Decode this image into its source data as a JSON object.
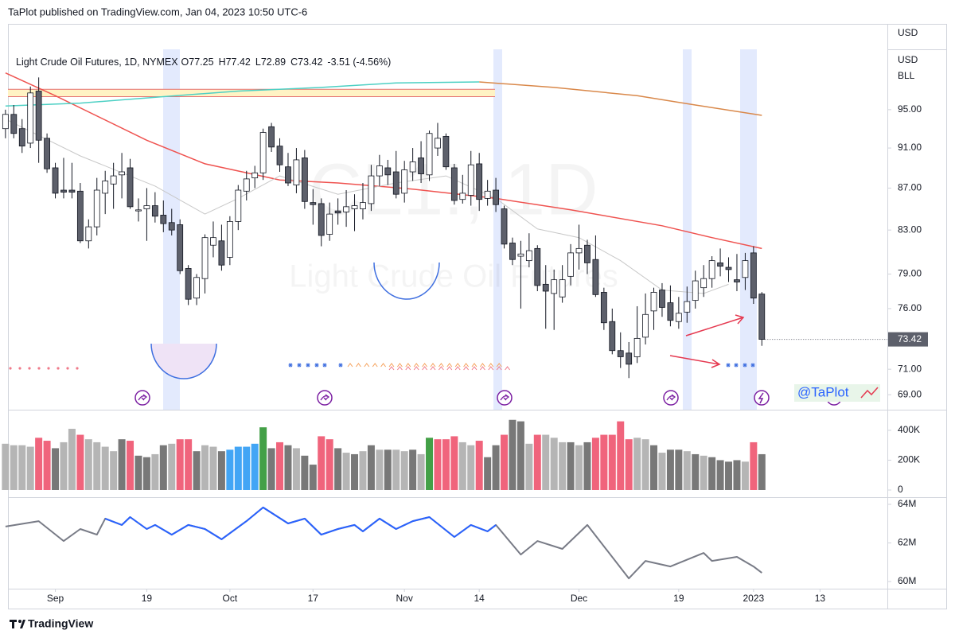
{
  "header": {
    "text": "TaPlot published on TradingView.com, Jan 04, 2023 10:50 UTC-6"
  },
  "footer": {
    "logo": "TradingView"
  },
  "chart_data": {
    "type": "candlestick",
    "legend": {
      "title": "Light Crude Oil Futures, 1D, NYMEX",
      "ohlc": [
        "O77.25",
        "H77.42",
        "L72.89",
        "C73.42"
      ],
      "change": "-3.51 (-4.56%)"
    },
    "watermark": {
      "symbol": "CL1!, 1D",
      "name": "Light Crude Oil Futures"
    },
    "axis_labels": [
      "USD",
      "USD",
      "BLL"
    ],
    "annotation": "@TaPlot",
    "log": true,
    "xlim": [
      0.3,
      106.1
    ],
    "xticks": [
      {
        "value": 6,
        "label": "Sep"
      },
      {
        "value": 17,
        "label": "19"
      },
      {
        "value": 27,
        "label": "Oct"
      },
      {
        "value": 37,
        "label": "17"
      },
      {
        "value": 48,
        "label": "Nov"
      },
      {
        "value": 57,
        "label": "14"
      },
      {
        "value": 69,
        "label": "Dec"
      },
      {
        "value": 81,
        "label": "19"
      },
      {
        "value": 90,
        "label": "2023"
      },
      {
        "value": 98,
        "label": "13"
      }
    ],
    "ylim": [
      67.85,
      104.6
    ],
    "yticks": [
      {
        "value": 69,
        "label": "69.00"
      },
      {
        "value": 71,
        "label": "71.00"
      },
      {
        "value": 76,
        "label": "76.00"
      },
      {
        "value": 79,
        "label": "79.00"
      },
      {
        "value": 83,
        "label": "83.00"
      },
      {
        "value": 87,
        "label": "87.00"
      },
      {
        "value": 91,
        "label": "91.00"
      },
      {
        "value": 95,
        "label": "95.00"
      }
    ],
    "up_color": "#ffffff",
    "down_color": "#5d606b",
    "wick_color": "#131722",
    "open": [
      93.0,
      94.5,
      93.0,
      91.5,
      97.0,
      92.0,
      89.0,
      86.8,
      86.8,
      86.7,
      82.0,
      83.3,
      86.5,
      87.4,
      88.3,
      89.0,
      84.8,
      85.0,
      85.3,
      84.4,
      83.7,
      83.5,
      79.5,
      76.9,
      78.6,
      81.6,
      82.0,
      80.5,
      83.8,
      86.7,
      88.0,
      88.5,
      93.2,
      91.2,
      89.1,
      87.3,
      90.0,
      85.6,
      85.5,
      82.6,
      84.8,
      84.7,
      85.0,
      85.0,
      85.5,
      88.2,
      89.0,
      88.6,
      86.5,
      88.6,
      90.0,
      88.3,
      91.0,
      92.2,
      89.0,
      85.9,
      86.3,
      89.4,
      86.0,
      86.8,
      85.0,
      81.8,
      80.6,
      80.2,
      81.3,
      78.1,
      77.3,
      77.0,
      78.8,
      80.9,
      81.6,
      80.3,
      77.4,
      74.9,
      72.5,
      72.3,
      72.0,
      73.6,
      75.8,
      77.6,
      76.5,
      74.9,
      75.7,
      76.7,
      77.8,
      78.6,
      80.0,
      79.6,
      78.5,
      78.7,
      80.9,
      77.25
    ],
    "high": [
      95.0,
      95.5,
      94.0,
      97.5,
      98.5,
      92.5,
      89.5,
      90.0,
      89.5,
      87.5,
      84.0,
      88.0,
      88.7,
      89.5,
      90.5,
      89.9,
      86.0,
      87.0,
      86.6,
      85.8,
      85.0,
      84.0,
      79.8,
      79.0,
      82.6,
      83.8,
      83.5,
      84.3,
      87.3,
      88.7,
      89.2,
      93.0,
      93.6,
      92.0,
      90.5,
      91.0,
      90.8,
      86.9,
      86.0,
      85.6,
      86.0,
      86.8,
      86.4,
      87.5,
      89.3,
      90.3,
      89.8,
      90.7,
      89.7,
      91.0,
      91.7,
      92.8,
      93.6,
      92.5,
      89.4,
      88.3,
      90.7,
      90.5,
      87.8,
      88.0,
      85.3,
      82.3,
      82.0,
      82.7,
      81.6,
      79.8,
      79.4,
      79.8,
      81.7,
      83.5,
      82.1,
      82.5,
      77.8,
      76.0,
      74.0,
      73.2,
      76.2,
      77.3,
      77.8,
      78.2,
      78.0,
      77.0,
      77.9,
      79.3,
      79.8,
      80.6,
      81.3,
      80.5,
      80.8,
      80.9,
      81.5,
      77.42
    ],
    "low": [
      92.0,
      92.0,
      90.5,
      91.0,
      89.5,
      88.5,
      86.0,
      86.0,
      86.0,
      81.8,
      81.3,
      82.5,
      84.5,
      85.0,
      86.0,
      85.0,
      83.8,
      82.0,
      83.7,
      82.8,
      82.5,
      79.0,
      76.3,
      76.3,
      77.3,
      80.5,
      79.3,
      79.8,
      83.0,
      85.8,
      87.0,
      87.8,
      90.6,
      88.6,
      87.2,
      86.5,
      85.0,
      83.5,
      81.5,
      82.0,
      83.5,
      83.3,
      82.9,
      84.0,
      84.8,
      87.2,
      87.3,
      86.0,
      85.6,
      87.7,
      87.5,
      87.7,
      90.2,
      88.8,
      85.4,
      85.5,
      85.3,
      84.8,
      85.3,
      84.7,
      81.3,
      79.8,
      76.0,
      79.6,
      77.5,
      74.3,
      74.2,
      76.5,
      78.0,
      79.4,
      79.0,
      77.0,
      74.2,
      72.2,
      71.1,
      70.3,
      71.5,
      73.0,
      74.2,
      75.3,
      74.5,
      74.3,
      74.8,
      76.0,
      77.0,
      77.8,
      78.8,
      78.3,
      77.5,
      77.6,
      76.4,
      72.89
    ],
    "close": [
      94.5,
      92.5,
      91.2,
      96.8,
      91.8,
      88.9,
      86.5,
      86.6,
      86.6,
      82.0,
      83.3,
      86.8,
      87.7,
      88.2,
      88.6,
      85.2,
      84.9,
      85.3,
      84.3,
      83.6,
      83.0,
      79.3,
      76.8,
      78.7,
      82.3,
      82.3,
      79.8,
      83.8,
      86.8,
      87.9,
      88.5,
      92.6,
      91.1,
      89.3,
      87.5,
      89.8,
      85.7,
      85.4,
      82.5,
      84.5,
      84.6,
      85.2,
      85.3,
      85.6,
      88.2,
      89.2,
      88.3,
      86.4,
      88.8,
      89.6,
      88.4,
      92.5,
      92.0,
      89.1,
      85.8,
      86.5,
      89.3,
      85.9,
      86.7,
      85.4,
      81.7,
      80.3,
      80.8,
      81.1,
      78.0,
      77.5,
      78.5,
      78.5,
      80.9,
      81.3,
      80.0,
      77.2,
      74.8,
      72.5,
      72.0,
      71.4,
      73.5,
      75.5,
      77.4,
      76.1,
      75.0,
      75.6,
      76.6,
      78.4,
      78.6,
      80.2,
      79.7,
      79.4,
      78.3,
      80.2,
      76.9,
      73.42
    ],
    "zone": {
      "values": [
        96.4,
        97.2
      ],
      "color": "#fff3c4",
      "edge_color": "#e57373"
    },
    "lines": [
      {
        "color": "#ef5350",
        "x": [
          0,
          6,
          17,
          24,
          33,
          40,
          49,
          59,
          68,
          79,
          85,
          91
        ],
        "values": [
          99.0,
          96.5,
          91.8,
          89.4,
          87.8,
          87.5,
          86.9,
          86.0,
          84.9,
          83.4,
          82.3,
          81.3
        ]
      },
      {
        "color": "#c8c8c8",
        "x": [
          0,
          9,
          18,
          24,
          28,
          33,
          40,
          47,
          53,
          59,
          64,
          69,
          74,
          79,
          84,
          87
        ],
        "values": [
          94.0,
          90.2,
          87.2,
          84.5,
          86.0,
          88.2,
          86.4,
          87.5,
          88.2,
          86.0,
          83.1,
          82.3,
          80.2,
          77.6,
          77.3,
          78.1
        ]
      },
      {
        "color": "#4dd0c4",
        "x": [
          0,
          9,
          19,
          28,
          38,
          47,
          57
        ],
        "values": [
          95.4,
          95.7,
          96.4,
          97.0,
          97.4,
          97.9,
          98.0
        ]
      },
      {
        "color": "#d9884a",
        "x": [
          57,
          66,
          76,
          83,
          91
        ],
        "values": [
          98.0,
          97.4,
          96.5,
          95.5,
          94.4
        ]
      }
    ],
    "volume": {
      "ylim": [
        -48000,
        538000
      ],
      "yticks": [
        0,
        {
          "value": 200000,
          "label": "200K"
        },
        {
          "value": 400000,
          "label": "400K"
        }
      ],
      "values": [
        310000,
        300000,
        300000,
        290000,
        350000,
        330000,
        280000,
        320000,
        410000,
        370000,
        340000,
        320000,
        290000,
        260000,
        340000,
        330000,
        230000,
        220000,
        240000,
        300000,
        310000,
        340000,
        340000,
        260000,
        300000,
        290000,
        260000,
        270000,
        290000,
        290000,
        310000,
        420000,
        280000,
        320000,
        300000,
        280000,
        230000,
        170000,
        360000,
        340000,
        280000,
        250000,
        240000,
        260000,
        300000,
        270000,
        270000,
        270000,
        260000,
        270000,
        240000,
        350000,
        340000,
        340000,
        360000,
        320000,
        300000,
        330000,
        220000,
        300000,
        370000,
        470000,
        460000,
        310000,
        370000,
        370000,
        350000,
        320000,
        320000,
        300000,
        320000,
        350000,
        370000,
        370000,
        460000,
        340000,
        350000,
        340000,
        300000,
        250000,
        270000,
        270000,
        260000,
        240000,
        230000,
        220000,
        200000,
        190000,
        200000,
        190000,
        320000,
        240000
      ],
      "colors": [
        "#b5b5b5",
        "#b5b5b5",
        "#b5b5b5",
        "#b5b5b5",
        "#f0647c",
        "#f0647c",
        "#787878",
        "#b5b5b5",
        "#b5b5b5",
        "#f0647c",
        "#b5b5b5",
        "#b5b5b5",
        "#b5b5b5",
        "#b5b5b5",
        "#787878",
        "#f0647c",
        "#787878",
        "#787878",
        "#b5b5b5",
        "#787878",
        "#b5b5b5",
        "#f0647c",
        "#f0647c",
        "#787878",
        "#b5b5b5",
        "#b5b5b5",
        "#787878",
        "#42a5f5",
        "#42a5f5",
        "#42a5f5",
        "#42a5f5",
        "#43a047",
        "#787878",
        "#f0647c",
        "#787878",
        "#b5b5b5",
        "#787878",
        "#787878",
        "#f0647c",
        "#f0647c",
        "#787878",
        "#b5b5b5",
        "#787878",
        "#b5b5b5",
        "#787878",
        "#b5b5b5",
        "#787878",
        "#b5b5b5",
        "#b5b5b5",
        "#787878",
        "#b5b5b5",
        "#43a047",
        "#f0647c",
        "#f0647c",
        "#f0647c",
        "#b5b5b5",
        "#b5b5b5",
        "#f0647c",
        "#787878",
        "#787878",
        "#f0647c",
        "#787878",
        "#787878",
        "#b5b5b5",
        "#f0647c",
        "#b5b5b5",
        "#b5b5b5",
        "#b5b5b5",
        "#787878",
        "#b5b5b5",
        "#787878",
        "#f0647c",
        "#f0647c",
        "#f0647c",
        "#f0647c",
        "#f0647c",
        "#b5b5b5",
        "#b5b5b5",
        "#787878",
        "#b5b5b5",
        "#787878",
        "#787878",
        "#b5b5b5",
        "#787878",
        "#b5b5b5",
        "#787878",
        "#787878",
        "#787878",
        "#787878",
        "#b5b5b5",
        "#f0647c",
        "#787878"
      ]
    },
    "indicator": {
      "ylim": [
        59630000,
        64370000
      ],
      "yticks": [
        {
          "value": 60000000,
          "label": "60M"
        },
        {
          "value": 62000000,
          "label": "62M"
        },
        {
          "value": 64000000,
          "label": "64M"
        }
      ],
      "series": [
        {
          "color": "#787b86",
          "x": [
            0,
            4,
            7,
            9,
            11,
            12,
            14,
            15,
            17,
            18,
            20,
            22,
            24,
            26,
            29,
            31,
            34,
            36,
            38,
            40,
            42,
            43,
            45,
            47,
            49,
            51,
            54,
            56,
            58,
            59,
            62,
            64,
            67,
            70,
            75,
            77,
            80,
            84,
            85,
            88,
            90,
            91
          ],
          "values": [
            62850000,
            63130000,
            62100000,
            62720000,
            62430000,
            63260000,
            62930000,
            63340000,
            62720000,
            62930000,
            62430000,
            62930000,
            62720000,
            62190000,
            63130000,
            63840000,
            63010000,
            63260000,
            62430000,
            62720000,
            62930000,
            62600000,
            63260000,
            62720000,
            63130000,
            63340000,
            62310000,
            62930000,
            62600000,
            62930000,
            61400000,
            62100000,
            61690000,
            62930000,
            60160000,
            61070000,
            60780000,
            61480000,
            61070000,
            61280000,
            60780000,
            60450000
          ]
        },
        {
          "color": "#2962ff",
          "x": [
            12,
            14,
            15,
            17,
            18,
            20,
            22,
            24,
            26,
            29,
            31,
            34,
            36,
            38,
            40,
            42,
            43,
            45,
            47,
            49,
            51,
            54,
            56,
            58,
            59
          ],
          "values": [
            63260000,
            62930000,
            63340000,
            62720000,
            62930000,
            62430000,
            62930000,
            62720000,
            62190000,
            63130000,
            63840000,
            63010000,
            63260000,
            62430000,
            62720000,
            62930000,
            62600000,
            63260000,
            62720000,
            63130000,
            63340000,
            62310000,
            62930000,
            62600000,
            62930000
          ]
        }
      ]
    }
  }
}
